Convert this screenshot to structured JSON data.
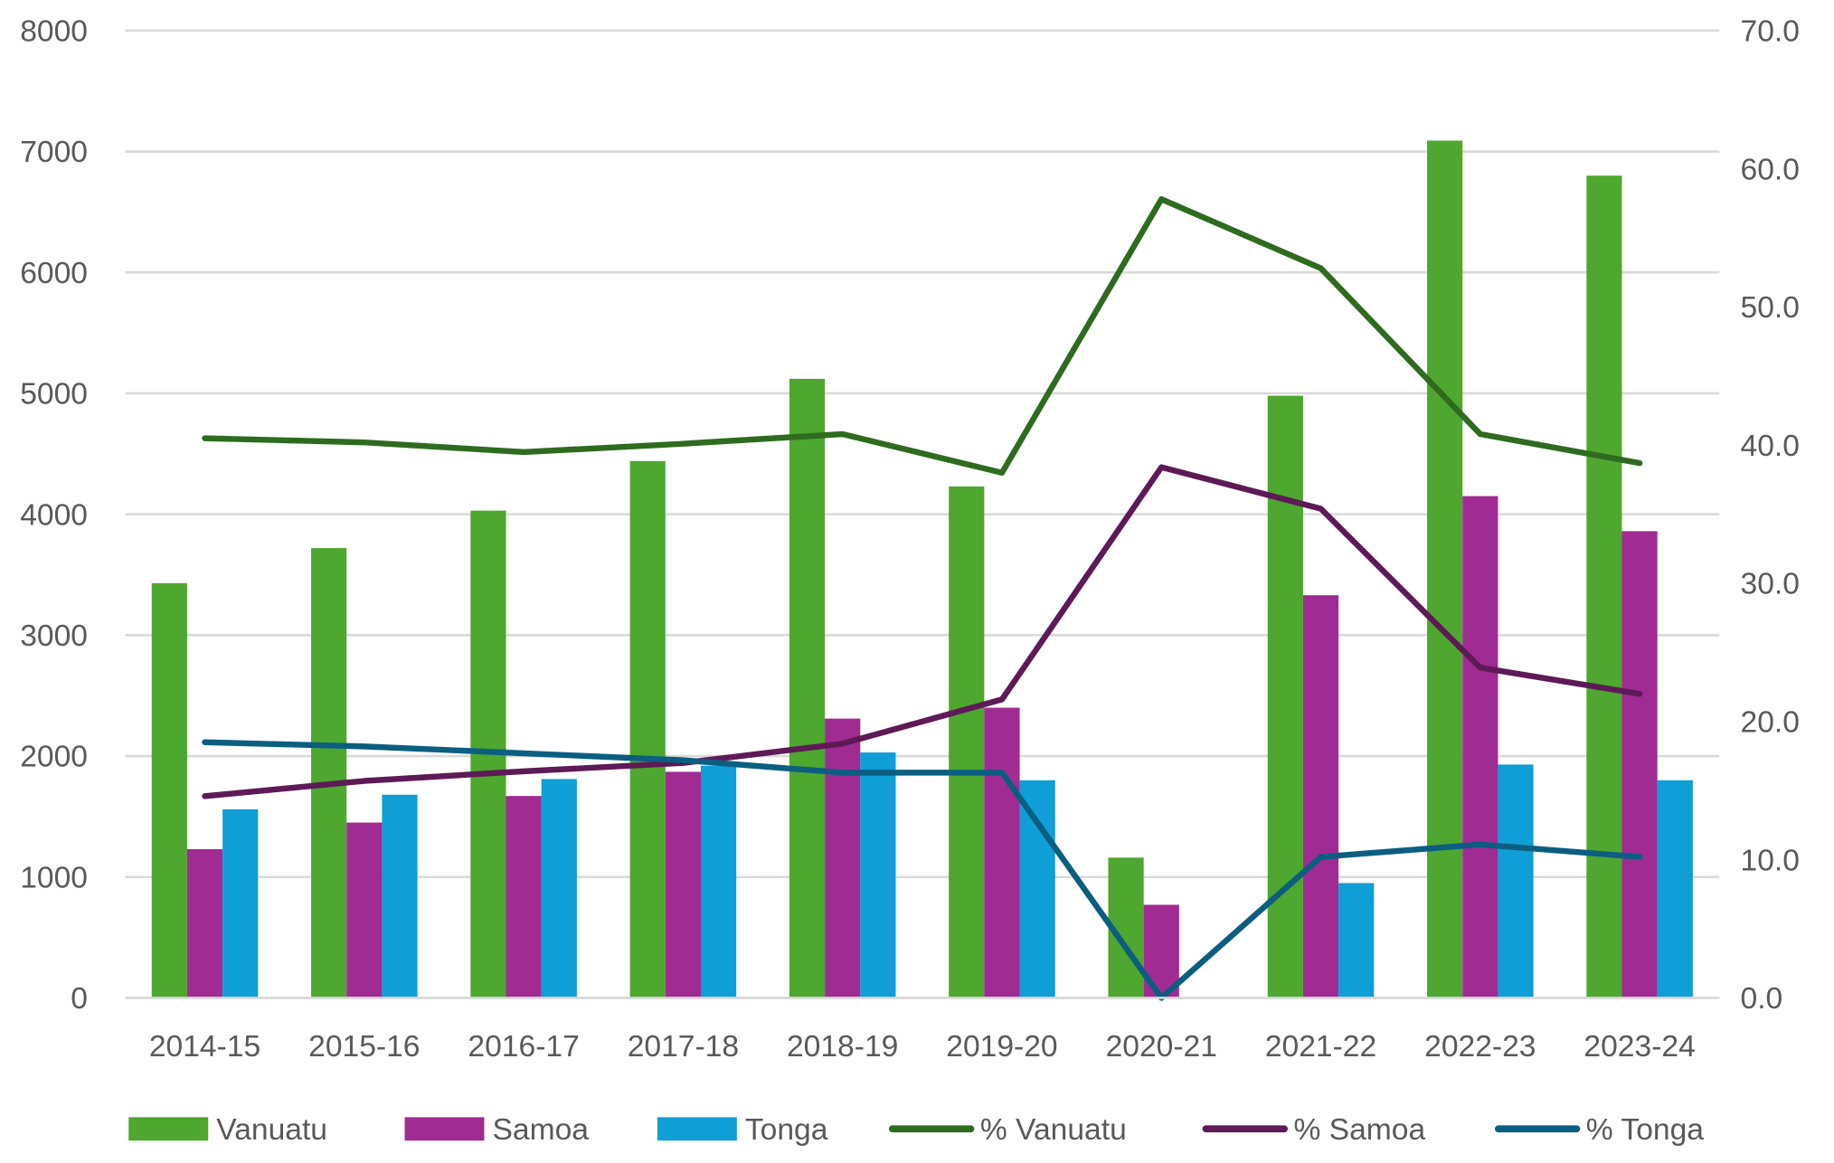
{
  "chart_data": {
    "type": "bar",
    "categories": [
      "2014-15",
      "2015-16",
      "2016-17",
      "2017-18",
      "2018-19",
      "2019-20",
      "2020-21",
      "2021-22",
      "2022-23",
      "2023-24"
    ],
    "y_left": {
      "min": 0,
      "max": 8000,
      "ticks": [
        0,
        1000,
        2000,
        3000,
        4000,
        5000,
        6000,
        7000,
        8000
      ],
      "tick_labels": [
        "0",
        "1000",
        "2000",
        "3000",
        "4000",
        "5000",
        "6000",
        "7000",
        "8000"
      ]
    },
    "y_right": {
      "min": 0,
      "max": 70,
      "ticks": [
        0,
        10,
        20,
        30,
        40,
        50,
        60,
        70
      ],
      "tick_labels": [
        "0.0",
        "10.0",
        "20.0",
        "30.0",
        "40.0",
        "50.0",
        "60.0",
        "70.0"
      ]
    },
    "grid": true,
    "legend_position": "bottom",
    "bar_series": [
      {
        "name": "Vanuatu",
        "color": "#4EA72E",
        "values": [
          3430,
          3720,
          4030,
          4440,
          5120,
          4230,
          1160,
          4980,
          7090,
          6800
        ]
      },
      {
        "name": "Samoa",
        "color": "#A02B93",
        "values": [
          1230,
          1450,
          1670,
          1870,
          2310,
          2400,
          770,
          3330,
          4150,
          3860
        ]
      },
      {
        "name": "Tonga",
        "color": "#0F9ED5",
        "values": [
          1560,
          1680,
          1810,
          1920,
          2030,
          1800,
          0,
          950,
          1930,
          1800
        ]
      }
    ],
    "line_series": [
      {
        "name": "% Vanuatu",
        "color": "#2E6B1F",
        "axis": "right",
        "values": [
          40.5,
          40.2,
          39.5,
          40.1,
          40.8,
          38.0,
          57.8,
          52.8,
          40.8,
          38.7
        ]
      },
      {
        "name": "% Samoa",
        "color": "#5E1A56",
        "axis": "right",
        "values": [
          14.6,
          15.7,
          16.4,
          17.0,
          18.4,
          21.6,
          38.4,
          35.4,
          23.9,
          22.0
        ]
      },
      {
        "name": "% Tonga",
        "color": "#0B5E80",
        "axis": "right",
        "values": [
          18.5,
          18.2,
          17.7,
          17.2,
          16.3,
          16.3,
          0.0,
          10.2,
          11.1,
          10.2
        ]
      }
    ]
  }
}
